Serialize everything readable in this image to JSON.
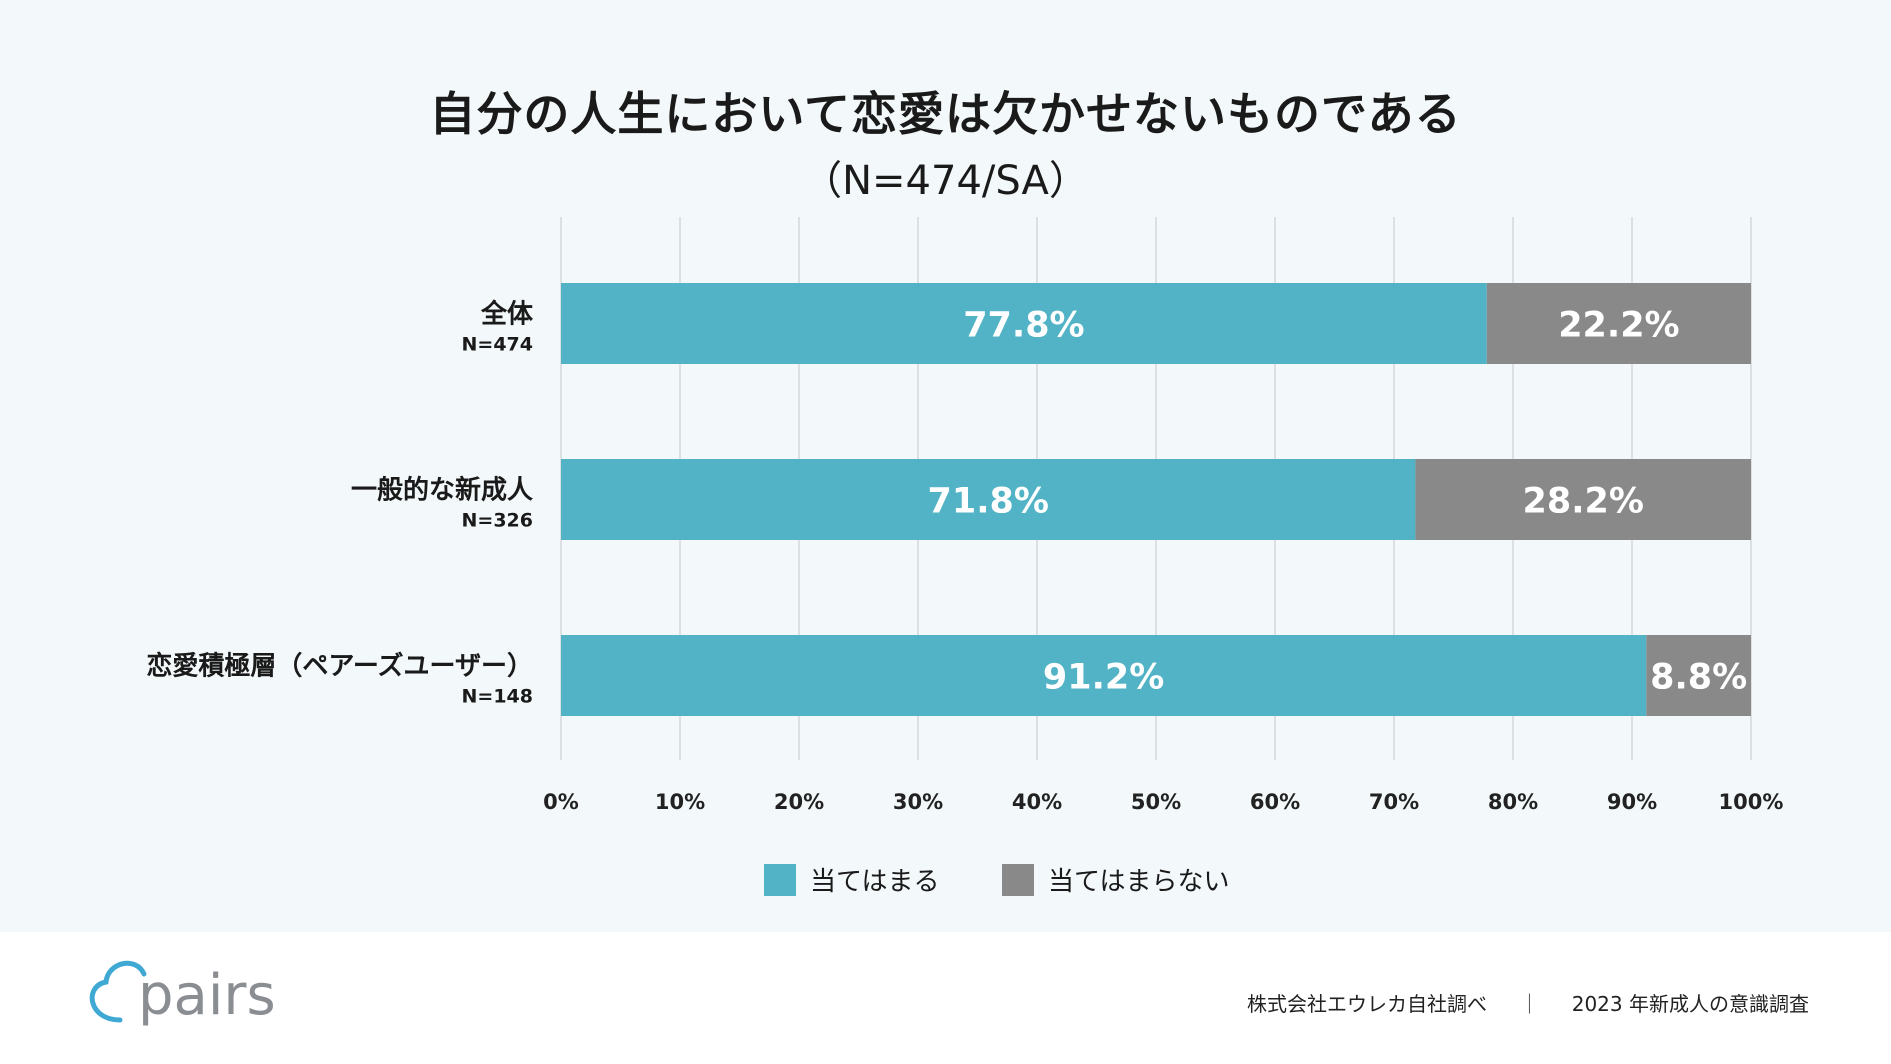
{
  "chart_data": {
    "type": "bar",
    "orientation": "horizontal",
    "stacked": true,
    "title": "自分の人生において恋愛は欠かせないものである",
    "subtitle": "（N=474/SA）",
    "categories": [
      {
        "label": "全体",
        "n": "N=474"
      },
      {
        "label": "一般的な新成人",
        "n": "N=326"
      },
      {
        "label": "恋愛積極層（ペアーズユーザー）",
        "n": "N=148"
      }
    ],
    "series": [
      {
        "name": "当てはまる",
        "color": "#51b3c5",
        "values": [
          77.8,
          71.8,
          91.2
        ],
        "labels": [
          "77.8%",
          "71.8%",
          "91.2%"
        ]
      },
      {
        "name": "当てはまらない",
        "color": "#898989",
        "values": [
          22.2,
          28.2,
          8.8
        ],
        "labels": [
          "22.2%",
          "28.2%",
          "8.8%"
        ]
      }
    ],
    "xlim": [
      0,
      100
    ],
    "xticks": [
      "0%",
      "10%",
      "20%",
      "30%",
      "40%",
      "50%",
      "60%",
      "70%",
      "80%",
      "90%",
      "100%"
    ],
    "grid": true,
    "legend": "bottom-center"
  },
  "footer": {
    "brand": "pairs",
    "source": "株式会社エウレカ自社調べ",
    "separator": "｜",
    "survey": "2023 年新成人の意識調査"
  }
}
